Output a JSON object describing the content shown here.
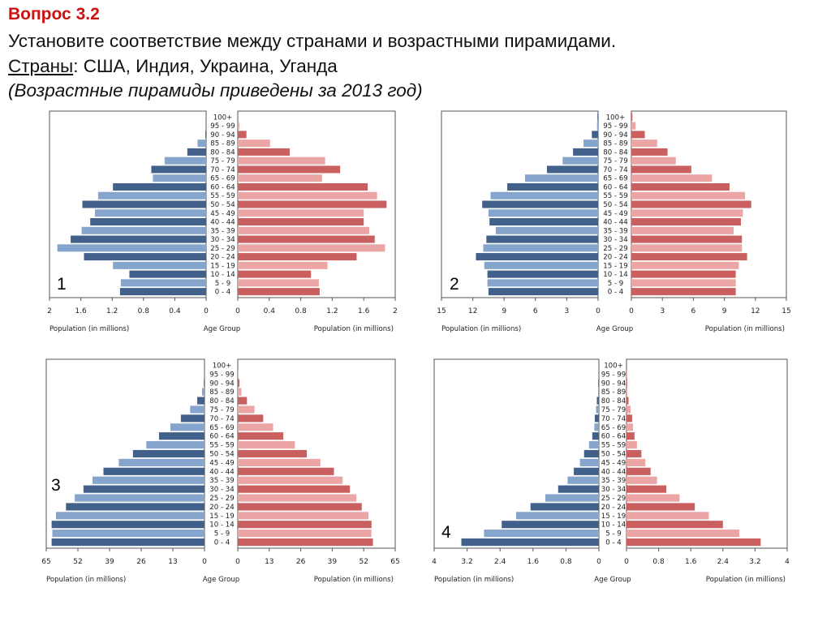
{
  "header": {
    "title": "Вопрос  3.2",
    "line1": "Установите соответствие между странами и возрастными пирамидами.",
    "line2_label": "Страны",
    "line2_rest": ": США, Индия, Украина, Уганда",
    "line3": "(Возрастные пирамиды приведены за 2013 год)"
  },
  "colors": {
    "male_dark": "#41618a",
    "male_light": "#85a5cc",
    "female_dark": "#c9605f",
    "female_light": "#eba5a5",
    "title_red": "#cc1111"
  },
  "chart_data": [
    {
      "type": "bar",
      "subtype": "population-pyramid",
      "label": "1",
      "categories": [
        "0 - 4",
        "5 - 9",
        "10 - 14",
        "15 - 19",
        "20 - 24",
        "25 - 29",
        "30 - 34",
        "35 - 39",
        "40 - 44",
        "45 - 49",
        "50 - 54",
        "55 - 59",
        "60 - 64",
        "65 - 69",
        "70 - 74",
        "75 - 79",
        "80 - 84",
        "85 - 89",
        "90 - 94",
        "95 - 99",
        "100+"
      ],
      "male": [
        1.1,
        1.09,
        0.98,
        1.19,
        1.56,
        1.9,
        1.73,
        1.59,
        1.48,
        1.42,
        1.58,
        1.38,
        1.19,
        0.68,
        0.7,
        0.53,
        0.24,
        0.11,
        0.01,
        0.0,
        0.0
      ],
      "female": [
        1.04,
        1.03,
        0.93,
        1.14,
        1.51,
        1.87,
        1.74,
        1.67,
        1.6,
        1.6,
        1.89,
        1.77,
        1.65,
        1.07,
        1.3,
        1.11,
        0.66,
        0.41,
        0.11,
        0.02,
        0.0
      ],
      "xlim": [
        0,
        2
      ],
      "ticks": [
        "0",
        "0.4",
        "0.8",
        "1.2",
        "1.6",
        "2"
      ],
      "tick_values": [
        0,
        0.4,
        0.8,
        1.2,
        1.6,
        2
      ],
      "xlabel_left": "Population (in millions)",
      "xlabel_center": "Age Group",
      "xlabel_right": "Population (in millions)"
    },
    {
      "type": "bar",
      "subtype": "population-pyramid",
      "label": "2",
      "categories": [
        "0 - 4",
        "5 - 9",
        "10 - 14",
        "15 - 19",
        "20 - 24",
        "25 - 29",
        "30 - 34",
        "35 - 39",
        "40 - 44",
        "45 - 49",
        "50 - 54",
        "55 - 59",
        "60 - 64",
        "65 - 69",
        "70 - 74",
        "75 - 79",
        "80 - 84",
        "85 - 89",
        "90 - 94",
        "95 - 99",
        "100+"
      ],
      "male": [
        10.5,
        10.6,
        10.6,
        10.9,
        11.7,
        11.0,
        10.7,
        9.8,
        10.4,
        10.5,
        11.1,
        10.3,
        8.7,
        7.0,
        4.9,
        3.4,
        2.4,
        1.4,
        0.6,
        0.1,
        0.02
      ],
      "female": [
        10.1,
        10.1,
        10.1,
        10.4,
        11.2,
        10.7,
        10.7,
        9.9,
        10.6,
        10.8,
        11.6,
        11.0,
        9.5,
        7.8,
        5.8,
        4.3,
        3.5,
        2.5,
        1.3,
        0.4,
        0.1
      ],
      "xlim": [
        0,
        15
      ],
      "ticks": [
        "0",
        "3",
        "6",
        "9",
        "12",
        "15"
      ],
      "tick_values": [
        0,
        3,
        6,
        9,
        12,
        15
      ],
      "xlabel_left": "Population (in millions)",
      "xlabel_center": "Age Group",
      "xlabel_right": "Population (in millions)"
    },
    {
      "type": "bar",
      "subtype": "population-pyramid",
      "label": "3",
      "categories": [
        "0 - 4",
        "5 - 9",
        "10 - 14",
        "15 - 19",
        "20 - 24",
        "25 - 29",
        "30 - 34",
        "35 - 39",
        "40 - 44",
        "45 - 49",
        "50 - 54",
        "55 - 59",
        "60 - 64",
        "65 - 69",
        "70 - 74",
        "75 - 79",
        "80 - 84",
        "85 - 89",
        "90 - 94",
        "95 - 99",
        "100+"
      ],
      "male": [
        62.8,
        62.5,
        62.8,
        61.0,
        56.9,
        53.3,
        49.7,
        46.0,
        41.5,
        35.2,
        29.4,
        23.9,
        18.7,
        14.0,
        9.7,
        5.9,
        3.0,
        1.0,
        0.2,
        0.05,
        0.0
      ],
      "female": [
        55.8,
        55.2,
        55.2,
        54.0,
        51.2,
        49.0,
        46.3,
        43.3,
        39.7,
        34.1,
        28.5,
        23.6,
        18.8,
        14.6,
        10.5,
        6.9,
        3.8,
        1.5,
        0.7,
        0.1,
        0.0
      ],
      "xlim": [
        0,
        65
      ],
      "ticks": [
        "0",
        "13",
        "26",
        "39",
        "52",
        "65"
      ],
      "tick_values": [
        0,
        13,
        26,
        39,
        52,
        65
      ],
      "xlabel_left": "Population (in millions)",
      "xlabel_center": "Age Group",
      "xlabel_right": "Population (in millions)"
    },
    {
      "type": "bar",
      "subtype": "population-pyramid",
      "label": "4",
      "categories": [
        "0 - 4",
        "5 - 9",
        "10 - 14",
        "15 - 19",
        "20 - 24",
        "25 - 29",
        "30 - 34",
        "35 - 39",
        "40 - 44",
        "45 - 49",
        "50 - 54",
        "55 - 59",
        "60 - 64",
        "65 - 69",
        "70 - 74",
        "75 - 79",
        "80 - 84",
        "85 - 89",
        "90 - 94",
        "95 - 99",
        "100+"
      ],
      "male": [
        3.34,
        2.79,
        2.36,
        2.01,
        1.66,
        1.3,
        0.99,
        0.76,
        0.61,
        0.46,
        0.36,
        0.24,
        0.16,
        0.11,
        0.1,
        0.07,
        0.05,
        0.02,
        0.01,
        0.005,
        0.0
      ],
      "female": [
        3.34,
        2.81,
        2.4,
        2.05,
        1.7,
        1.32,
        0.99,
        0.76,
        0.6,
        0.47,
        0.37,
        0.26,
        0.2,
        0.16,
        0.14,
        0.1,
        0.05,
        0.02,
        0.01,
        0.005,
        0.0
      ],
      "xlim": [
        0,
        4
      ],
      "ticks": [
        "0",
        "0.8",
        "1.6",
        "2.4",
        "3.2",
        "4"
      ],
      "tick_values": [
        0,
        0.8,
        1.6,
        2.4,
        3.2,
        4
      ],
      "xlabel_left": "Population (in millions)",
      "xlabel_center": "Age Group",
      "xlabel_right": "Population (in millions)"
    }
  ]
}
